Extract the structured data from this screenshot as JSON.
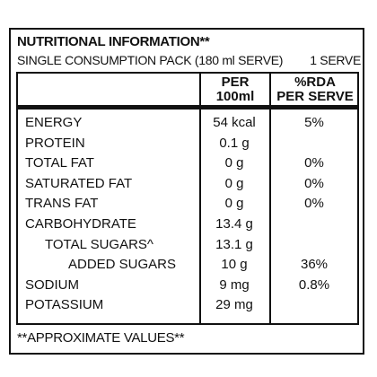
{
  "header": {
    "title": "NUTRITIONAL INFORMATION**",
    "subtitle": "SINGLE CONSUMPTION PACK (180 ml SERVE)",
    "serve": "1 SERVE"
  },
  "table": {
    "columns": [
      "PER\n100ml",
      "%RDA\nPER SERVE"
    ],
    "rows": [
      [
        "ENERGY",
        "54 kcal",
        "5%"
      ],
      [
        "PROTEIN",
        "0.1 g",
        null
      ],
      [
        "TOTAL FAT",
        "0 g",
        "0%"
      ],
      [
        "SATURATED FAT",
        "0 g",
        "0%"
      ],
      [
        "TRANS FAT",
        "0 g",
        "0%"
      ],
      [
        "CARBOHYDRATE",
        "13.4 g",
        null
      ],
      [
        "TOTAL SUGARS^",
        "13.1 g",
        null
      ],
      [
        "ADDED SUGARS",
        "10 g",
        "36%"
      ],
      [
        "SODIUM",
        "9 mg",
        "0.8%"
      ],
      [
        "POTASSIUM",
        "29 mg",
        null
      ]
    ]
  },
  "footer": "**APPROXIMATE VALUES**"
}
